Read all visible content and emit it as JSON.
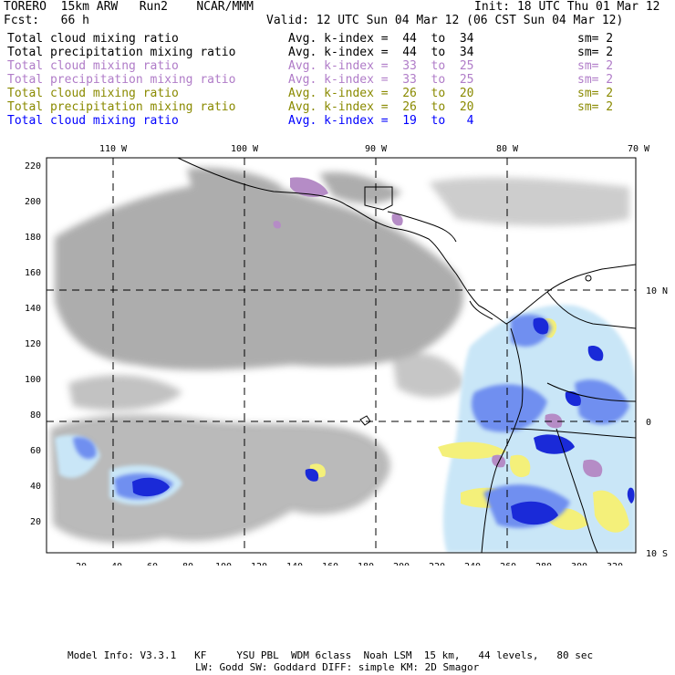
{
  "header": {
    "model_line": "TORERO  15km ARW   Run2    NCAR/MMM",
    "init": "Init: 18 UTC Thu 01 Mar 12",
    "fcst": "Fcst:   66 h",
    "valid": "Valid: 12 UTC Sun 04 Mar 12 (06 CST Sun 04 Mar 12)"
  },
  "fields": [
    {
      "field": "Total cloud mixing ratio",
      "avg": "Avg. k-index =  44  to  34",
      "sm": "sm= 2",
      "color": "#000000"
    },
    {
      "field": "Total precipitation mixing ratio",
      "avg": "Avg. k-index =  44  to  34",
      "sm": "sm= 2",
      "color": "#000000"
    },
    {
      "field": "Total cloud mixing ratio",
      "avg": "Avg. k-index =  33  to  25",
      "sm": "sm= 2",
      "color": "#b07cc8"
    },
    {
      "field": "Total precipitation mixing ratio",
      "avg": "Avg. k-index =  33  to  25",
      "sm": "sm= 2",
      "color": "#b07cc8"
    },
    {
      "field": "Total cloud mixing ratio",
      "avg": "Avg. k-index =  26  to  20",
      "sm": "sm= 2",
      "color": "#8a8a00"
    },
    {
      "field": "Total precipitation mixing ratio",
      "avg": "Avg. k-index =  26  to  20",
      "sm": "sm= 2",
      "color": "#8a8a00"
    },
    {
      "field": "Total cloud mixing ratio",
      "avg": "Avg. k-index =  19  to   4",
      "sm": "",
      "color": "#0000ff"
    }
  ],
  "map": {
    "top_lon_labels": [
      "110 W",
      "100 W",
      "90 W",
      "80 W",
      "70 W"
    ],
    "right_lat_labels": [
      "10 N",
      "0",
      "10 S"
    ],
    "y_ticks": [
      "220",
      "200",
      "180",
      "160",
      "140",
      "120",
      "100",
      "80",
      "60",
      "40",
      "20"
    ],
    "x_ticks": [
      "20",
      "40",
      "60",
      "80",
      "100",
      "120",
      "140",
      "160",
      "180",
      "200",
      "220",
      "240",
      "260",
      "280",
      "300",
      "320"
    ],
    "colors": {
      "cloud_gray": "#a9a9a9",
      "lavender": "#b58cc6",
      "yellow": "#f4f07a",
      "light_blue": "#c9e6f7",
      "mid_blue": "#6f8ff0",
      "dark_blue": "#1a2ad8"
    }
  },
  "footer": {
    "line1": "Model Info: V3.3.1   KF     YSU PBL  WDM 6class  Noah LSM  15 km,   44 levels,   80 sec",
    "line2": "LW: Godd SW: Goddard DIFF: simple KM: 2D Smagor"
  }
}
